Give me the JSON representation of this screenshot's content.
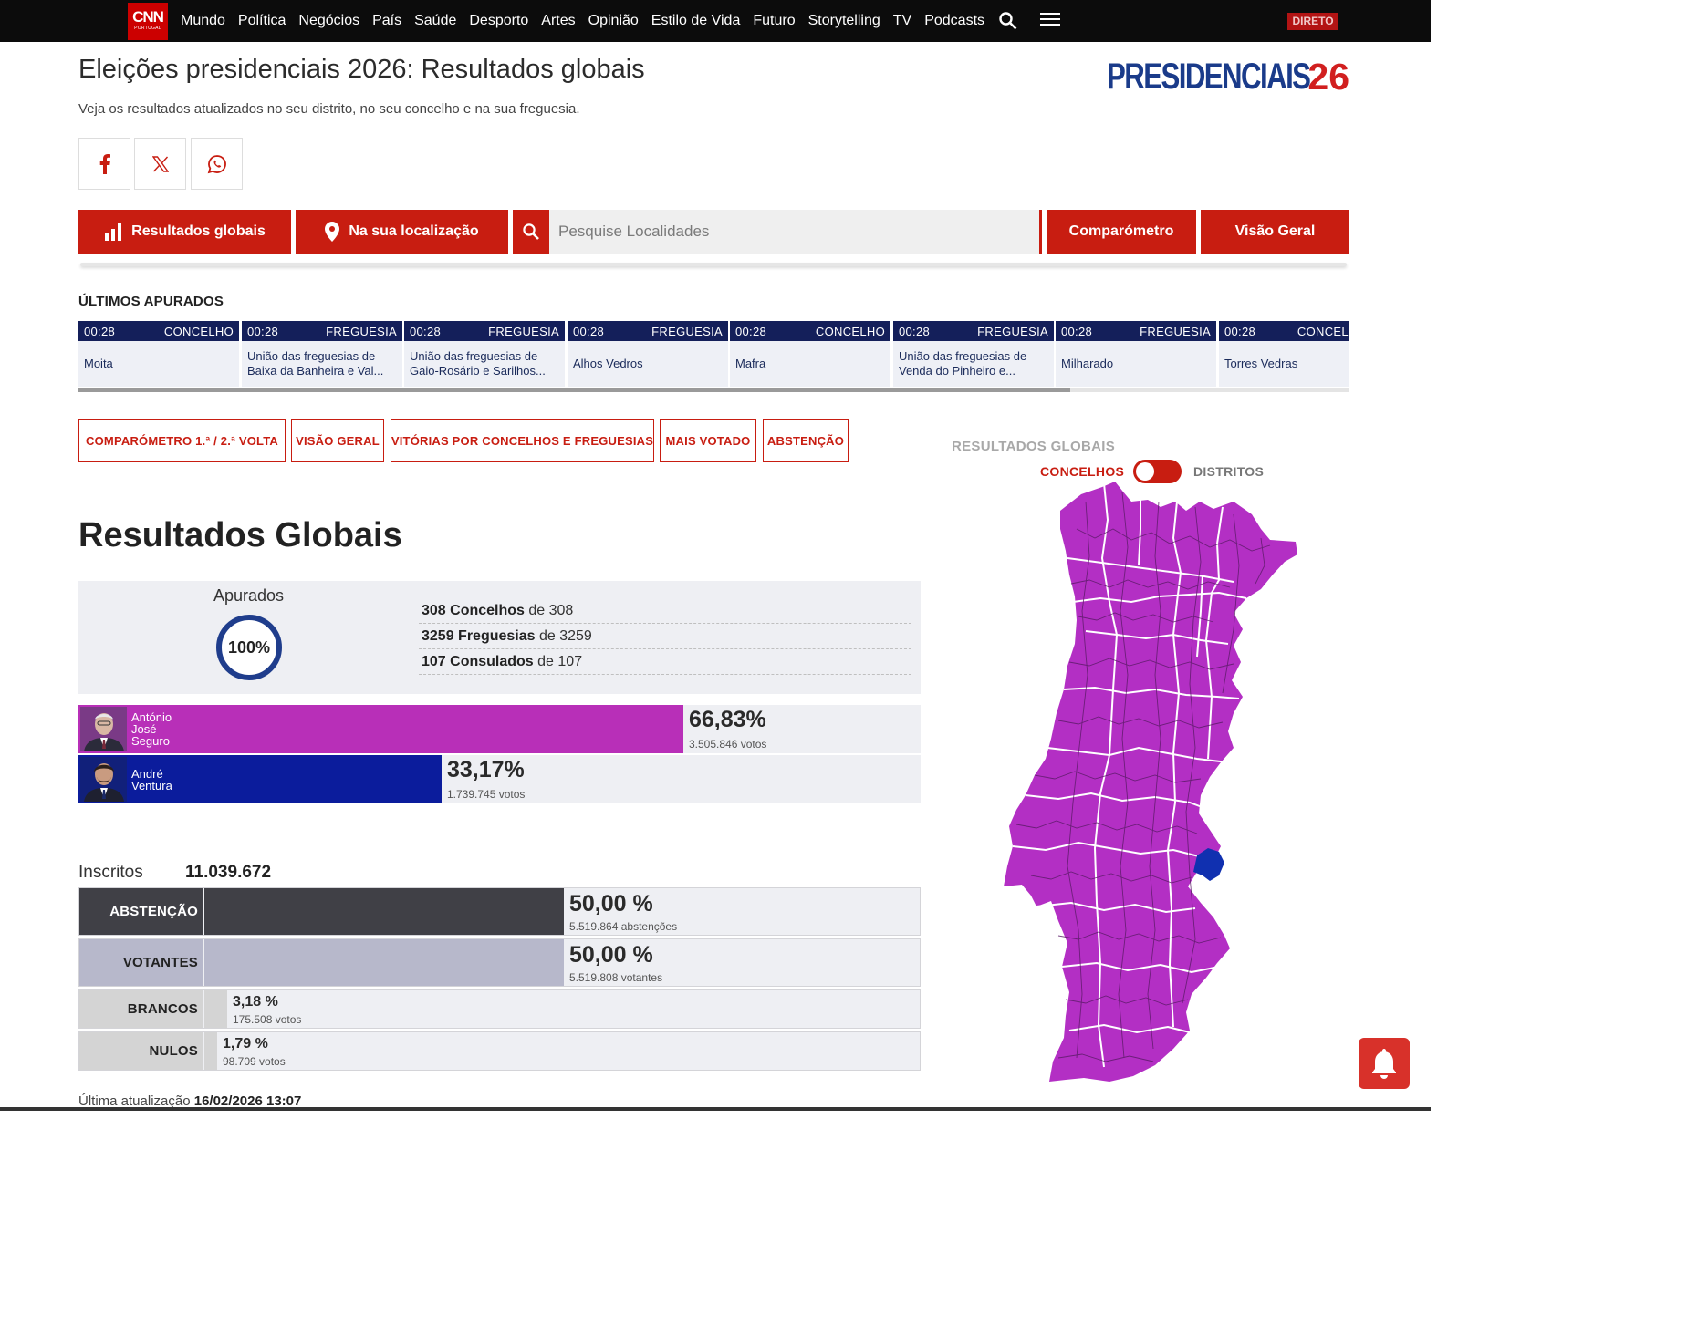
{
  "nav": {
    "logo_main": "CNN",
    "logo_sub": "PORTUGAL",
    "items": [
      "Mundo",
      "Política",
      "Negócios",
      "País",
      "Saúde",
      "Desporto",
      "Artes",
      "Opinião",
      "Estilo de Vida",
      "Futuro",
      "Storytelling",
      "TV",
      "Podcasts"
    ],
    "live_badge": "DIRETO"
  },
  "header": {
    "title": "Eleições presidenciais 2026: Resultados globais",
    "subtitle": "Veja os resultados atualizados no seu distrito, no seu concelho e na sua freguesia.",
    "brand_word": "PRESIDENCIAIS",
    "brand_number": "26"
  },
  "share_icons": [
    "facebook-icon",
    "x-icon",
    "whatsapp-icon"
  ],
  "action_bar": {
    "global_results": "Resultados globais",
    "location": "Na sua localização",
    "search_placeholder": "Pesquise Localidades",
    "comparometer": "Comparómetro",
    "overview": "Visão Geral"
  },
  "latest": {
    "title": "ÚLTIMOS APURADOS",
    "items": [
      {
        "time": "00:28",
        "type": "CONCELHO",
        "name": "Moita"
      },
      {
        "time": "00:28",
        "type": "FREGUESIA",
        "name": "União das freguesias de Baixa da Banheira e Val..."
      },
      {
        "time": "00:28",
        "type": "FREGUESIA",
        "name": "União das freguesias de Gaio-Rosário e Sarilhos..."
      },
      {
        "time": "00:28",
        "type": "FREGUESIA",
        "name": "Alhos Vedros"
      },
      {
        "time": "00:28",
        "type": "CONCELHO",
        "name": "Mafra"
      },
      {
        "time": "00:28",
        "type": "FREGUESIA",
        "name": "União das freguesias de Venda do Pinheiro e..."
      },
      {
        "time": "00:28",
        "type": "FREGUESIA",
        "name": "Milharado"
      },
      {
        "time": "00:28",
        "type": "CONCELHO",
        "name": "Torres Vedras"
      }
    ],
    "scroll_fraction": 0.78
  },
  "filters": [
    "COMPARÓMETRO 1.ª / 2.ª VOLTA",
    "VISÃO GERAL",
    "VITÓRIAS POR CONCELHOS E FREGUESIAS",
    "MAIS VOTADO",
    "ABSTENÇÃO"
  ],
  "results": {
    "title": "Resultados Globais",
    "counted_label": "Apurados",
    "counted_pct": "100%",
    "stats": [
      {
        "bold": "308 Concelhos",
        "rest": " de 308"
      },
      {
        "bold": "3259 Freguesias",
        "rest": " de 3259"
      },
      {
        "bold": "107 Consulados",
        "rest": " de 107"
      }
    ],
    "candidates": [
      {
        "name_lines": [
          "António",
          "José",
          "Seguro"
        ],
        "pct": "66,83%",
        "votes": "3.505.846 votos",
        "share": 0.6683,
        "color": "#b82fb8"
      },
      {
        "name_lines": [
          "André",
          "Ventura"
        ],
        "pct": "33,17%",
        "votes": "1.739.745 votos",
        "share": 0.3317,
        "color": "#0b1c9c"
      }
    ],
    "registered_label": "Inscritos",
    "registered_value": "11.039.672",
    "participation": [
      {
        "label": "ABSTENÇÃO",
        "pct": "50,00 %",
        "sub": "5.519.864 abstenções",
        "share": 0.5,
        "color": "#404046",
        "text_color": "#ffffff"
      },
      {
        "label": "VOTANTES",
        "pct": "50,00 %",
        "sub": "5.519.808 votantes",
        "share": 0.5,
        "color": "#b7b8cb",
        "text_color": "#222222"
      },
      {
        "label": "BRANCOS",
        "pct": "3,18 %",
        "sub": "175.508 votos",
        "share": 0.0318,
        "color": "#d4d4d4",
        "text_color": "#222222"
      },
      {
        "label": "NULOS",
        "pct": "1,79 %",
        "sub": "98.709 votos",
        "share": 0.0179,
        "color": "#d4d4d4",
        "text_color": "#222222"
      }
    ],
    "updated_label": "Última atualização",
    "updated_value": "16/02/2026 13:07"
  },
  "map": {
    "title": "RESULTADOS GLOBAIS",
    "toggle_left": "CONCELHOS",
    "toggle_right": "DISTRITOS",
    "main_color": "#b32fc4",
    "minor_color": "#1030b0"
  }
}
